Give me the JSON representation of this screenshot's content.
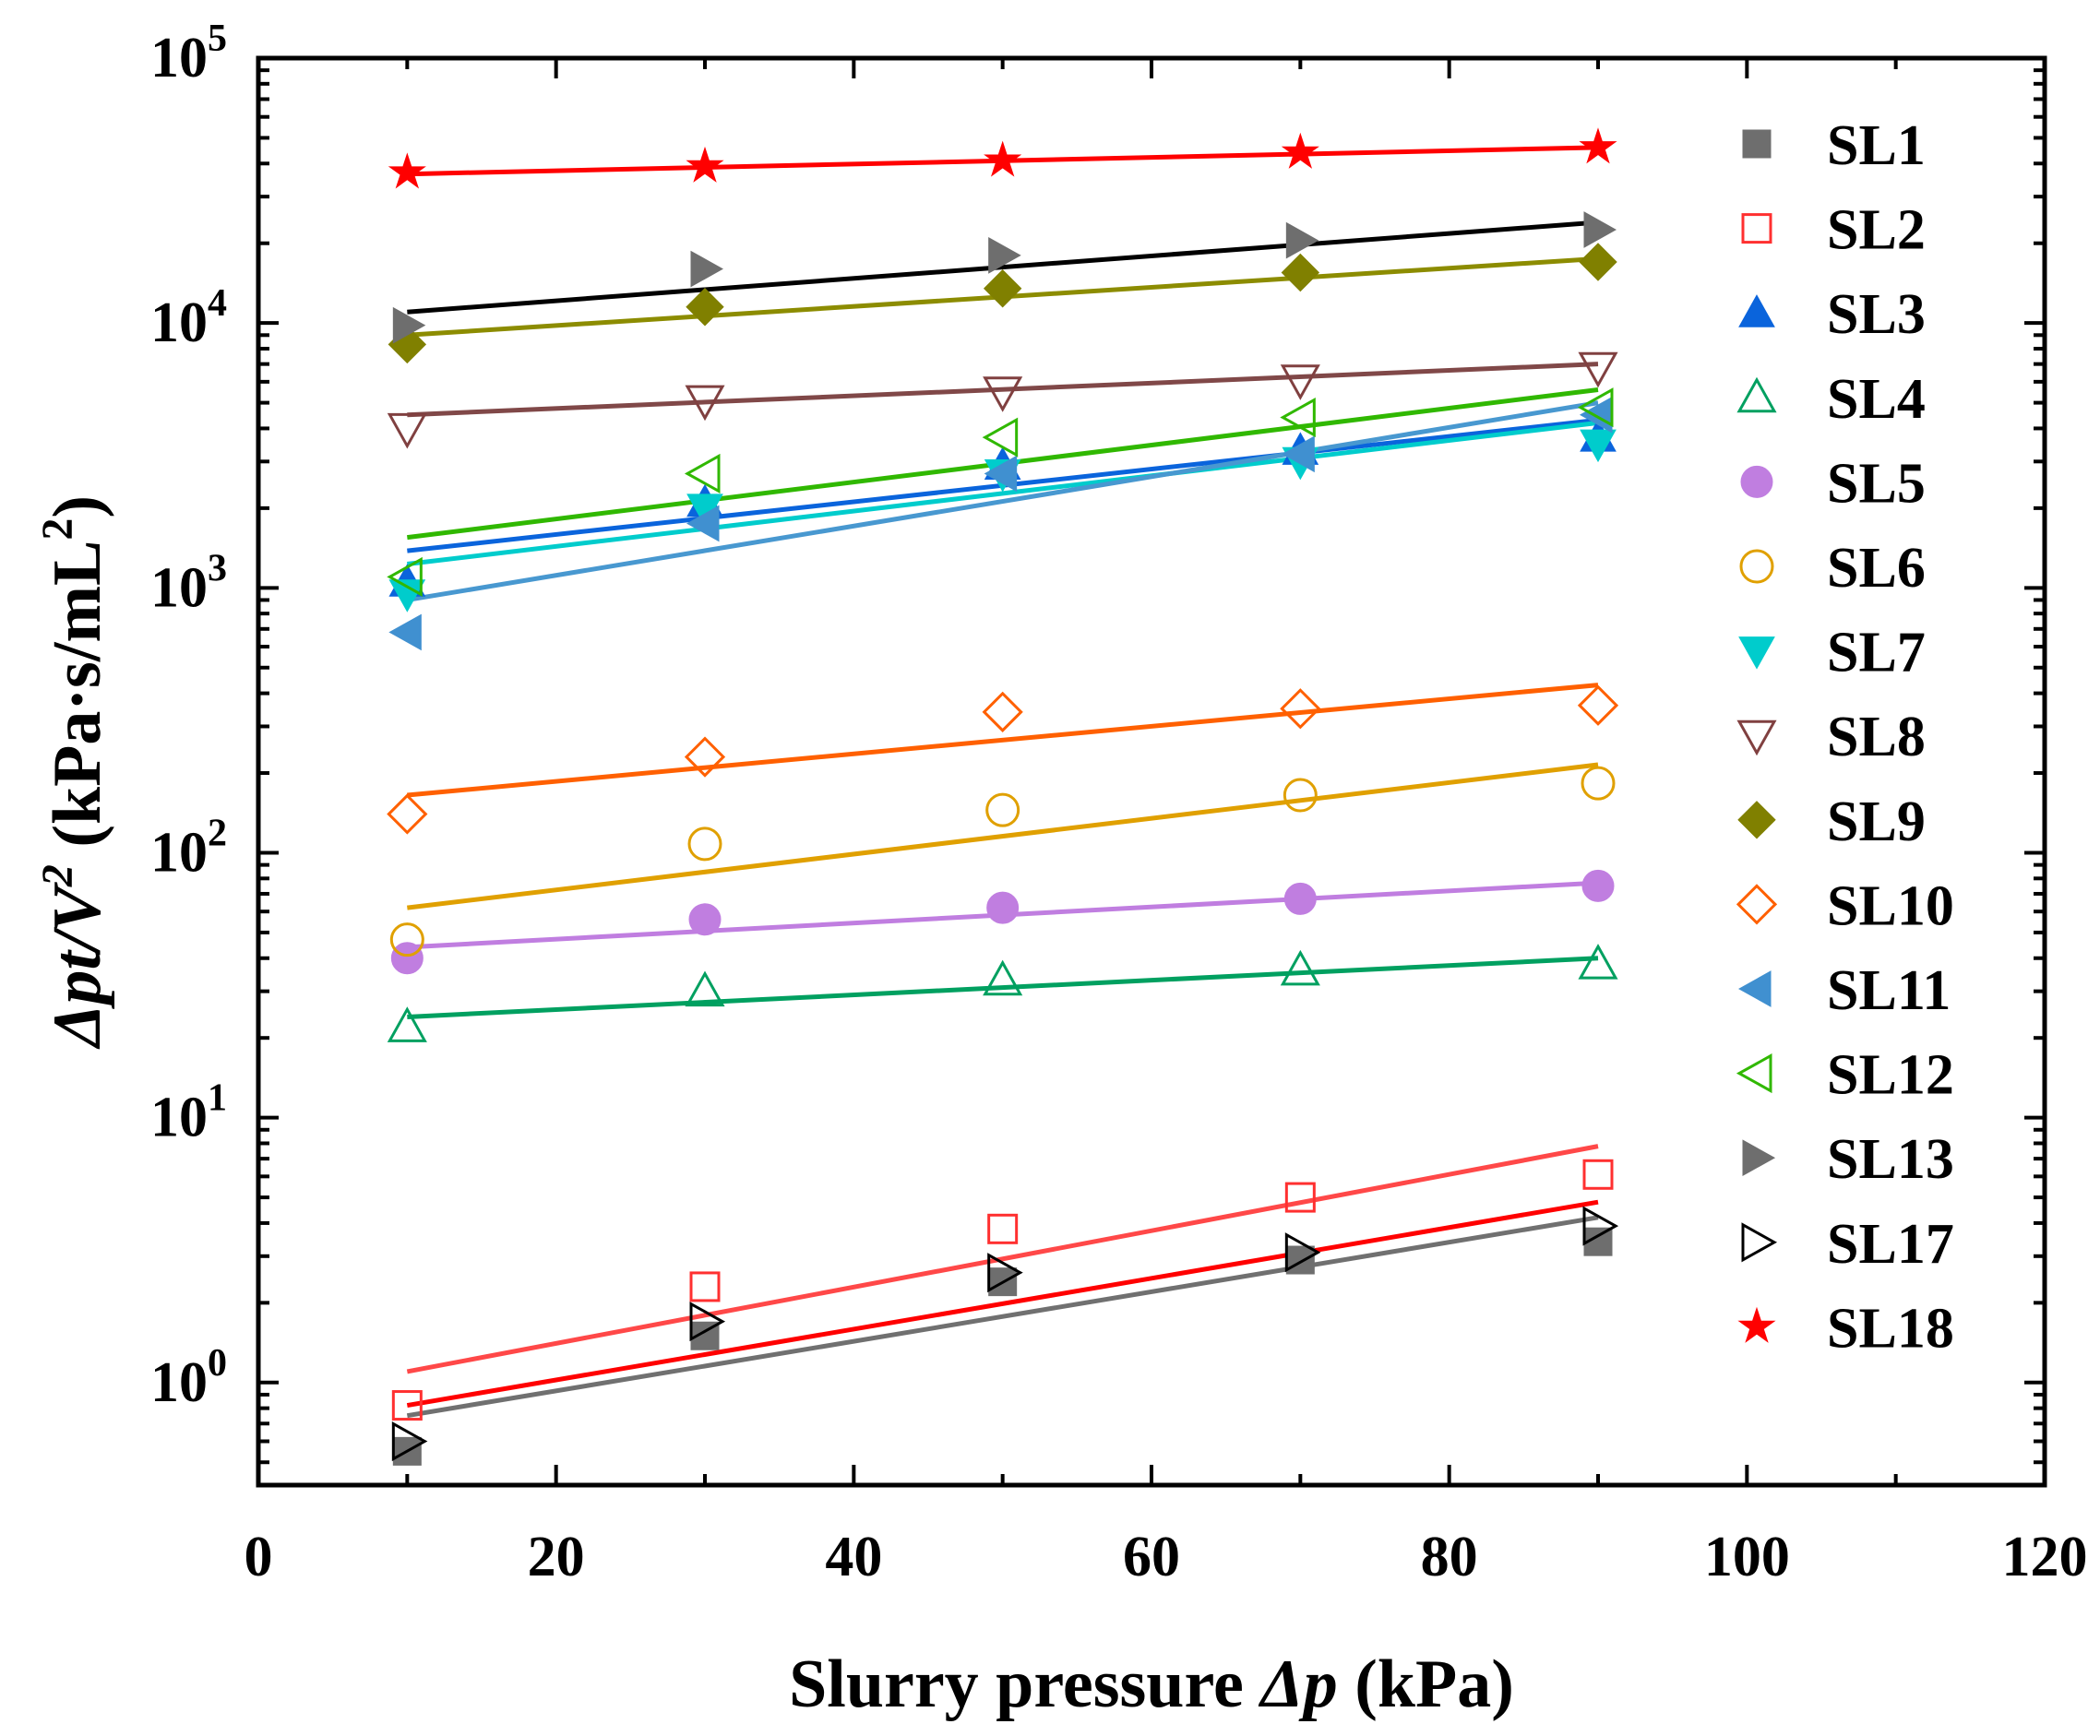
{
  "chart_data": {
    "type": "scatter",
    "xlabel": {
      "prefix": "Slurry pressure ",
      "italic": "Δp",
      "suffix": " (kPa)"
    },
    "ylabel": {
      "italic": "Δpt/V",
      "sup": "2",
      "unit_prefix": " (kPa·s/mL",
      "unit_sup": "2",
      "unit_suffix": ")"
    },
    "xlim": [
      0,
      120
    ],
    "ylim": [
      0.41,
      100000
    ],
    "yscale": "log",
    "x_ticks": [
      0,
      20,
      40,
      60,
      80,
      100,
      120
    ],
    "y_ticks": [
      {
        "base": "10",
        "exp": "0",
        "value": 1
      },
      {
        "base": "10",
        "exp": "1",
        "value": 10
      },
      {
        "base": "10",
        "exp": "2",
        "value": 100
      },
      {
        "base": "10",
        "exp": "3",
        "value": 1000
      },
      {
        "base": "10",
        "exp": "4",
        "value": 10000
      },
      {
        "base": "10",
        "exp": "5",
        "value": 100000
      }
    ],
    "grid": false,
    "legend_position": "right",
    "x": [
      10,
      30,
      50,
      70,
      90
    ],
    "series": [
      {
        "name": "SL1",
        "marker": "square",
        "filled": true,
        "color": "#6e6e6e",
        "line_color": "#707070",
        "values": [
          0.55,
          1.5,
          2.4,
          2.9,
          3.4
        ],
        "fit": [
          0.75,
          4.2
        ]
      },
      {
        "name": "SL2",
        "marker": "square",
        "filled": false,
        "color": "#ff3030",
        "line_color": "#ff4848",
        "values": [
          0.82,
          2.3,
          3.8,
          5.0,
          6.1
        ],
        "fit": [
          1.1,
          7.8
        ]
      },
      {
        "name": "SL3",
        "marker": "triangle-up",
        "filled": true,
        "color": "#0a64dc",
        "line_color": "#0a64dc",
        "values": [
          1050,
          2100,
          2900,
          3300,
          3700
        ],
        "fit": [
          1380,
          4300
        ]
      },
      {
        "name": "SL4",
        "marker": "triangle-up",
        "filled": false,
        "color": "#00a060",
        "line_color": "#00a060",
        "values": [
          22,
          30,
          33,
          36,
          38
        ],
        "fit": [
          24,
          40
        ]
      },
      {
        "name": "SL5",
        "marker": "circle",
        "filled": true,
        "color": "#c07ee0",
        "line_color": "#c07ee0",
        "values": [
          40,
          56,
          62,
          67,
          75
        ],
        "fit": [
          44,
          77
        ]
      },
      {
        "name": "SL6",
        "marker": "circle",
        "filled": false,
        "color": "#e0a000",
        "line_color": "#e0a000",
        "values": [
          47,
          108,
          145,
          165,
          183
        ],
        "fit": [
          62,
          215
        ]
      },
      {
        "name": "SL7",
        "marker": "triangle-down",
        "filled": true,
        "color": "#00cccc",
        "line_color": "#00cccc",
        "values": [
          950,
          2000,
          2700,
          3000,
          3500
        ],
        "fit": [
          1230,
          4200
        ]
      },
      {
        "name": "SL8",
        "marker": "triangle-down",
        "filled": false,
        "color": "#804040",
        "line_color": "#804848",
        "values": [
          4000,
          5100,
          5500,
          6100,
          6800
        ],
        "fit": [
          4500,
          7000
        ]
      },
      {
        "name": "SL9",
        "marker": "diamond",
        "filled": true,
        "color": "#808000",
        "line_color": "#8c8c00",
        "values": [
          8300,
          11500,
          13500,
          15500,
          17000
        ],
        "fit": [
          9000,
          17500
        ]
      },
      {
        "name": "SL10",
        "marker": "diamond",
        "filled": false,
        "color": "#ff6000",
        "line_color": "#ff6000",
        "values": [
          140,
          230,
          340,
          350,
          360
        ],
        "fit": [
          165,
          430
        ]
      },
      {
        "name": "SL11",
        "marker": "triangle-left",
        "filled": true,
        "color": "#4090d0",
        "line_color": "#4898d0",
        "values": [
          680,
          1750,
          2700,
          3200,
          4500
        ],
        "fit": [
          900,
          5000
        ]
      },
      {
        "name": "SL12",
        "marker": "triangle-left",
        "filled": false,
        "color": "#30b800",
        "line_color": "#30b800",
        "values": [
          1100,
          2700,
          3700,
          4400,
          4800
        ],
        "fit": [
          1550,
          5600
        ]
      },
      {
        "name": "SL13",
        "marker": "triangle-right",
        "filled": true,
        "color": "#6e6e6e",
        "line_color": "#000000",
        "values": [
          9800,
          16000,
          18000,
          20500,
          22500
        ],
        "fit": [
          11000,
          24000
        ]
      },
      {
        "name": "SL17",
        "marker": "triangle-right",
        "filled": false,
        "color": "#000000",
        "line_color": "#ff0000",
        "values": [
          0.6,
          1.7,
          2.6,
          3.1,
          3.9
        ],
        "fit": [
          0.82,
          4.8
        ]
      },
      {
        "name": "SL18",
        "marker": "star",
        "filled": true,
        "color": "#ff0000",
        "line_color": "#ff0000",
        "values": [
          37000,
          39000,
          41000,
          44000,
          46000
        ],
        "fit": [
          36500,
          46000
        ]
      }
    ]
  }
}
